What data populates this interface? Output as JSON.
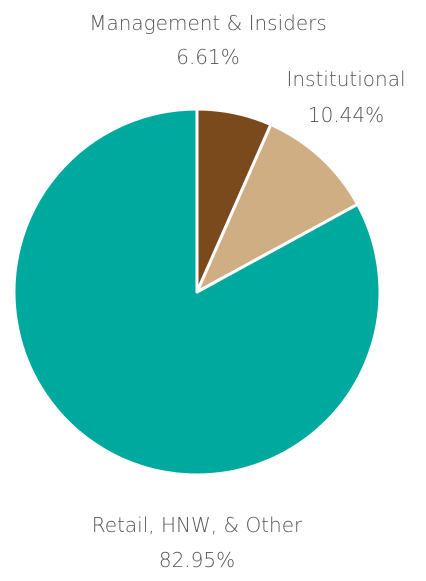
{
  "chart_data": {
    "type": "pie",
    "title": "",
    "slices": [
      {
        "label": "Management & Insiders",
        "value_label": "6.61%",
        "value": 6.61,
        "color": "#7B4A1C"
      },
      {
        "label": "Institutional",
        "value_label": "10.44%",
        "value": 10.44,
        "color": "#CFAE83"
      },
      {
        "label": "Retail, HNW, & Other",
        "value_label": "82.95%",
        "value": 82.95,
        "color": "#00A99D"
      }
    ],
    "start_angle": "12 o'clock",
    "direction": "clockwise"
  }
}
